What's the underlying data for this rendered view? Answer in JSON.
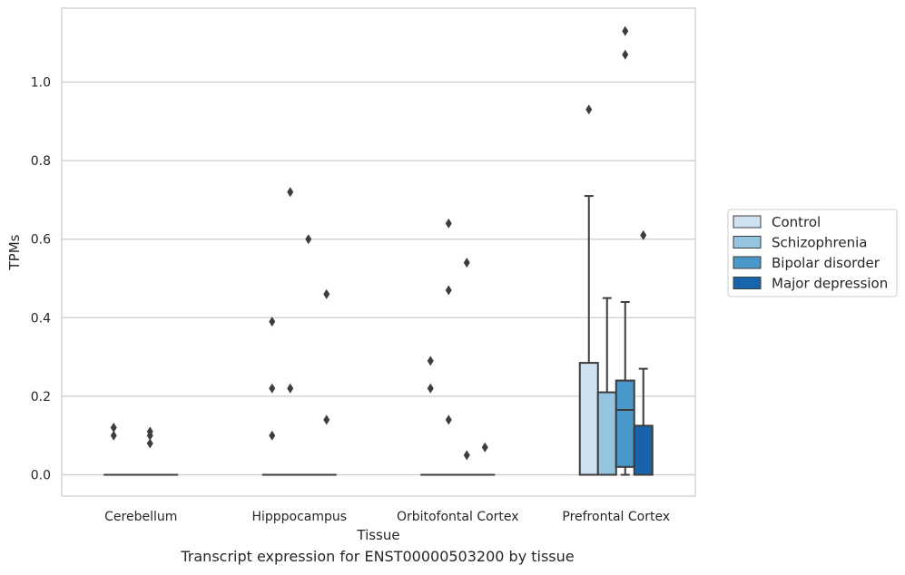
{
  "caption": "Transcript expression for ENST00000503200 by tissue",
  "chart_data": {
    "type": "box",
    "xlabel": "Tissue",
    "ylabel": "TPMs",
    "ylim": [
      -0.055,
      1.19
    ],
    "yticks": [
      0.0,
      0.2,
      0.4,
      0.6,
      0.8,
      1.0
    ],
    "ytick_labels": [
      "0.0",
      "0.2",
      "0.4",
      "0.6",
      "0.8",
      "1.0"
    ],
    "grid": true,
    "legend_position": "right",
    "categories": [
      "Cerebellum",
      "Hipppocampus",
      "Orbitofontal Cortex",
      "Prefrontal Cortex"
    ],
    "series": [
      {
        "name": "Control",
        "color": "#d0e1f2",
        "boxes": [
          {
            "q1": 0,
            "median": 0,
            "q3": 0,
            "whisker_low": 0,
            "whisker_high": 0,
            "outliers": [
              0.12,
              0.1
            ]
          },
          {
            "q1": 0,
            "median": 0,
            "q3": 0,
            "whisker_low": 0,
            "whisker_high": 0,
            "outliers": [
              0.39,
              0.22,
              0.1
            ]
          },
          {
            "q1": 0,
            "median": 0,
            "q3": 0,
            "whisker_low": 0,
            "whisker_high": 0,
            "outliers": [
              0.29,
              0.22
            ]
          },
          {
            "q1": 0,
            "median": 0,
            "q3": 0.285,
            "whisker_low": 0,
            "whisker_high": 0.71,
            "outliers": [
              0.93
            ]
          }
        ]
      },
      {
        "name": "Schizophrenia",
        "color": "#94c4df",
        "boxes": [
          {
            "q1": 0,
            "median": 0,
            "q3": 0,
            "whisker_low": 0,
            "whisker_high": 0,
            "outliers": []
          },
          {
            "q1": 0,
            "median": 0,
            "q3": 0,
            "whisker_low": 0,
            "whisker_high": 0,
            "outliers": [
              0.72,
              0.22
            ]
          },
          {
            "q1": 0,
            "median": 0,
            "q3": 0,
            "whisker_low": 0,
            "whisker_high": 0,
            "outliers": [
              0.64,
              0.47,
              0.14
            ]
          },
          {
            "q1": 0,
            "median": 0,
            "q3": 0.21,
            "whisker_low": 0,
            "whisker_high": 0.45,
            "outliers": []
          }
        ]
      },
      {
        "name": "Bipolar disorder",
        "color": "#4a98c9",
        "boxes": [
          {
            "q1": 0,
            "median": 0,
            "q3": 0,
            "whisker_low": 0,
            "whisker_high": 0,
            "outliers": [
              0.11,
              0.1,
              0.08
            ]
          },
          {
            "q1": 0,
            "median": 0,
            "q3": 0,
            "whisker_low": 0,
            "whisker_high": 0,
            "outliers": [
              0.6
            ]
          },
          {
            "q1": 0,
            "median": 0,
            "q3": 0,
            "whisker_low": 0,
            "whisker_high": 0,
            "outliers": [
              0.54,
              0.05
            ]
          },
          {
            "q1": 0.02,
            "median": 0.165,
            "q3": 0.24,
            "whisker_low": 0,
            "whisker_high": 0.44,
            "outliers": [
              1.13,
              1.07
            ]
          }
        ]
      },
      {
        "name": "Major depression",
        "color": "#1764ab",
        "boxes": [
          {
            "q1": 0,
            "median": 0,
            "q3": 0,
            "whisker_low": 0,
            "whisker_high": 0,
            "outliers": []
          },
          {
            "q1": 0,
            "median": 0,
            "q3": 0,
            "whisker_low": 0,
            "whisker_high": 0,
            "outliers": [
              0.46,
              0.14
            ]
          },
          {
            "q1": 0,
            "median": 0,
            "q3": 0,
            "whisker_low": 0,
            "whisker_high": 0,
            "outliers": [
              0.07
            ]
          },
          {
            "q1": 0,
            "median": 0,
            "q3": 0.125,
            "whisker_low": 0,
            "whisker_high": 0.27,
            "outliers": [
              0.61
            ]
          }
        ]
      }
    ]
  }
}
